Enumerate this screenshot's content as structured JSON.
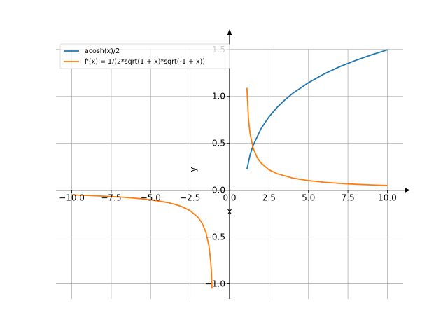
{
  "chart_data": {
    "type": "line",
    "title": "",
    "xlabel": "x",
    "ylabel": "y",
    "xlim": [
      -11.0,
      11.0
    ],
    "ylim": [
      -1.16,
      1.67
    ],
    "grid": true,
    "legend_position": "top-left",
    "x_ticks": [
      -10.0,
      -7.5,
      -5.0,
      -2.5,
      0.0,
      2.5,
      5.0,
      7.5,
      10.0
    ],
    "x_tick_labels": [
      "−10.0",
      "−7.5",
      "−5.0",
      "−2.5",
      "0.0",
      "2.5",
      "5.0",
      "7.5",
      "10.0"
    ],
    "y_ticks": [
      -1.0,
      -0.5,
      0.0,
      0.5,
      1.0,
      1.5
    ],
    "y_tick_labels": [
      "−1.0",
      "−0.5",
      "0.0",
      "0.5",
      "1.0",
      "1.5"
    ],
    "series": [
      {
        "name": "acosh(x)/2",
        "color": "#1f77b4",
        "points": [
          [
            1.1,
            0.222
          ],
          [
            1.3,
            0.378
          ],
          [
            1.5,
            0.481
          ],
          [
            2.0,
            0.658
          ],
          [
            2.5,
            0.783
          ],
          [
            3.0,
            0.881
          ],
          [
            3.5,
            0.962
          ],
          [
            4.0,
            1.032
          ],
          [
            5.0,
            1.146
          ],
          [
            6.0,
            1.24
          ],
          [
            7.0,
            1.318
          ],
          [
            8.0,
            1.384
          ],
          [
            9.0,
            1.443
          ],
          [
            10.0,
            1.496
          ]
        ]
      },
      {
        "name": "f'(x) = 1/(2*sqrt(1 + x)*sqrt(-1 + x))",
        "color": "#ff7f0e",
        "points_right": [
          [
            1.1,
            1.091
          ],
          [
            1.2,
            0.754
          ],
          [
            1.3,
            0.601
          ],
          [
            1.5,
            0.447
          ],
          [
            1.75,
            0.348
          ],
          [
            2.0,
            0.289
          ],
          [
            2.5,
            0.218
          ],
          [
            3.0,
            0.177
          ],
          [
            4.0,
            0.129
          ],
          [
            5.0,
            0.102
          ],
          [
            6.0,
            0.085
          ],
          [
            7.0,
            0.072
          ],
          [
            8.0,
            0.063
          ],
          [
            9.0,
            0.056
          ],
          [
            10.0,
            0.05
          ]
        ],
        "points_left": [
          [
            -10.0,
            -0.05
          ],
          [
            -9.0,
            -0.056
          ],
          [
            -8.0,
            -0.063
          ],
          [
            -7.0,
            -0.072
          ],
          [
            -6.0,
            -0.085
          ],
          [
            -5.0,
            -0.102
          ],
          [
            -4.0,
            -0.129
          ],
          [
            -3.5,
            -0.149
          ],
          [
            -3.0,
            -0.177
          ],
          [
            -2.5,
            -0.218
          ],
          [
            -2.0,
            -0.289
          ],
          [
            -1.75,
            -0.348
          ],
          [
            -1.5,
            -0.447
          ],
          [
            -1.3,
            -0.601
          ],
          [
            -1.2,
            -0.754
          ],
          [
            -1.15,
            -0.864
          ],
          [
            -1.11,
            -1.05
          ]
        ]
      }
    ]
  }
}
